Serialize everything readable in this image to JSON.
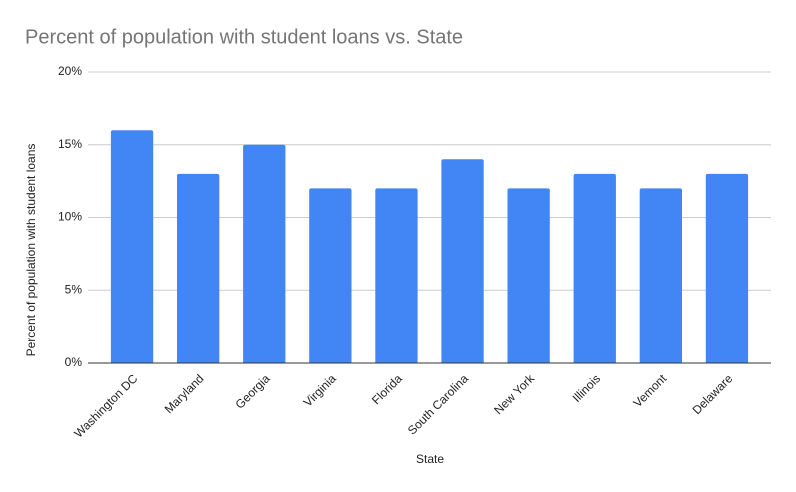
{
  "chart_data": {
    "type": "bar",
    "title": "Percent of population with student loans vs. State",
    "xlabel": "State",
    "ylabel": "Percent of population with student loans",
    "categories": [
      "Washington DC",
      "Maryland",
      "Georgia",
      "Virginia",
      "Florida",
      "South Carolina",
      "New York",
      "Illinois",
      "Vemont",
      "Delaware"
    ],
    "values": [
      16,
      13,
      15,
      12,
      12,
      14,
      12,
      13,
      12,
      13
    ],
    "color": "#4285f4",
    "ylim": [
      0,
      20
    ],
    "yticks": [
      {
        "value": 0,
        "label": "0%"
      },
      {
        "value": 5,
        "label": "5%"
      },
      {
        "value": 10,
        "label": "10%"
      },
      {
        "value": 15,
        "label": "15%"
      },
      {
        "value": 20,
        "label": "20%"
      }
    ],
    "grid": true
  }
}
